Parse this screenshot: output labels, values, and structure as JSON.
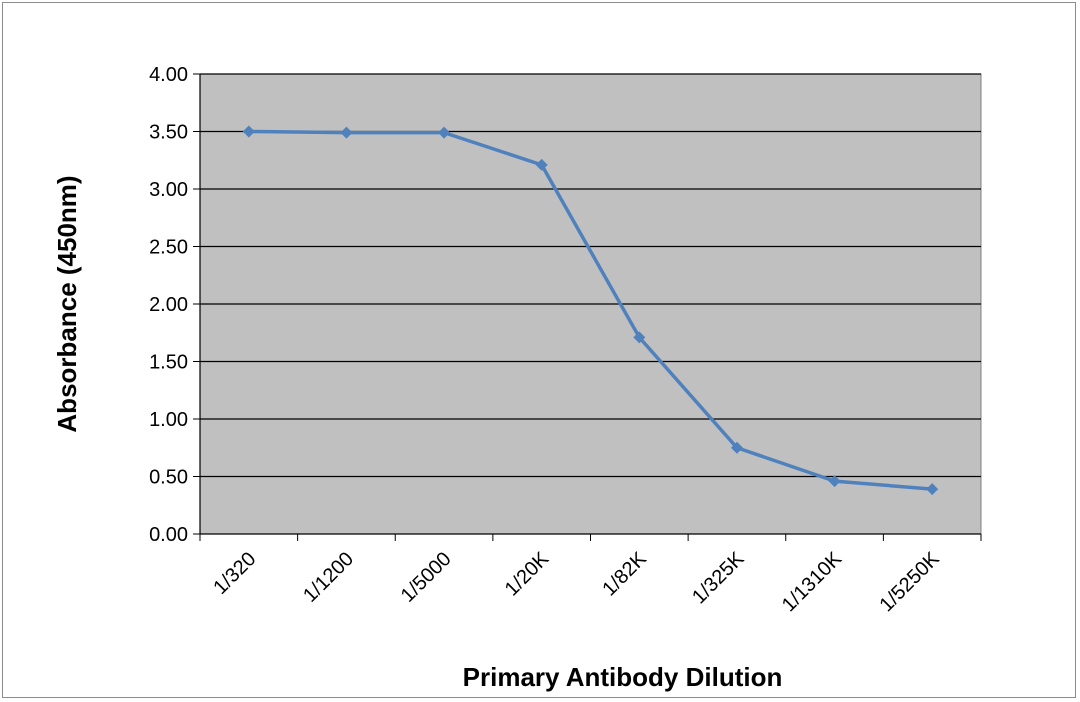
{
  "chart_data": {
    "type": "line",
    "title": "",
    "xlabel": "Primary Antibody Dilution",
    "ylabel": "Absorbance (450nm)",
    "categories": [
      "1/320",
      "1/1200",
      "1/5000",
      "1/20K",
      "1/82K",
      "1/325K",
      "1/1310K",
      "1/5250K"
    ],
    "series": [
      {
        "values": [
          3.5,
          3.49,
          3.49,
          3.21,
          1.71,
          0.75,
          0.46,
          0.39
        ]
      }
    ],
    "ylim": [
      0,
      4
    ],
    "yticks": [
      "0.00",
      "0.50",
      "1.00",
      "1.50",
      "2.00",
      "2.50",
      "3.00",
      "3.50",
      "4.00"
    ],
    "grid": true,
    "legend": "none",
    "colors": {
      "plot_background": "#c0c0c0",
      "series_line": "#4f81bd",
      "gridline": "#000000"
    }
  }
}
